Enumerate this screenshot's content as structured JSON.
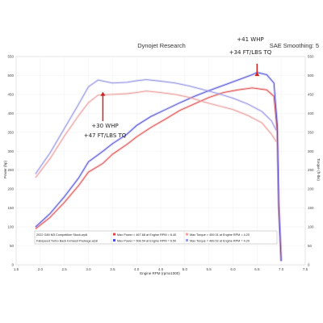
{
  "header": {
    "title": "Dynojet Research",
    "smoothing": "SAE Smoothing: 5"
  },
  "annotations": [
    {
      "line1": "+41 WHP",
      "line2": "+34 FT/LBS TQ",
      "arrow_at": [
        6.5,
        507
      ]
    },
    {
      "line1": "+30 WHP",
      "line2": "+47 FT/LBS TQ",
      "arrow_at": [
        3.3,
        455
      ]
    }
  ],
  "legend": {
    "rows": [
      {
        "file": "2022 G80 M3 Competition Stock.wp8",
        "power_text": "Max Power = 467.68 at Engine RPM = 6.40",
        "torque_text": "Max Torque = 459.31 at Engine RPM = 4.20",
        "power_color": "#e04848",
        "torque_color": "#f0a0a0"
      },
      {
        "file": "Fabspeed Turbo Back Exhaust Package.wp8",
        "power_text": "Max Power = 508.54 at Engine RPM = 6.50",
        "torque_text": "Max Torque = 489.52 at Engine RPM = 4.20",
        "power_color": "#4a4ad8",
        "torque_color": "#9a9ae8"
      }
    ]
  },
  "chart_data": {
    "type": "line",
    "xlabel": "Engine RPM (rpmx1000)",
    "ylabel_left": "Power (hp)",
    "ylabel_right": "Torque (ft-lbs)",
    "xlim": [
      1.5,
      7.5
    ],
    "ylim": [
      0,
      550
    ],
    "xticks": [
      "1.5",
      "2.0",
      "2.5",
      "3.0",
      "3.5",
      "4.0",
      "4.5",
      "5.0",
      "5.5",
      "6.0",
      "6.5",
      "7.0",
      "7.5"
    ],
    "yticks": [
      "0",
      "50",
      "100",
      "150",
      "200",
      "250",
      "300",
      "350",
      "400",
      "450",
      "500",
      "550"
    ],
    "series": [
      {
        "name": "2022 G80 M3 Competition Stock.wp8",
        "kind": "power",
        "color": "#e04848",
        "x": [
          1.9,
          2.2,
          2.5,
          2.8,
          3.0,
          3.3,
          3.5,
          3.8,
          4.0,
          4.3,
          4.6,
          4.9,
          5.2,
          5.5,
          5.8,
          6.1,
          6.4,
          6.7,
          6.85,
          6.92,
          6.95,
          7.0
        ],
        "y": [
          95,
          125,
          165,
          210,
          245,
          268,
          292,
          318,
          338,
          363,
          385,
          408,
          425,
          442,
          455,
          462,
          467,
          462,
          445,
          350,
          150,
          10
        ]
      },
      {
        "name": "Fabspeed Turbo Back Exhaust Package.wp8",
        "kind": "power",
        "color": "#4a4ad8",
        "x": [
          1.9,
          2.2,
          2.5,
          2.8,
          3.0,
          3.3,
          3.5,
          3.8,
          4.0,
          4.3,
          4.6,
          4.9,
          5.2,
          5.5,
          5.8,
          6.1,
          6.4,
          6.5,
          6.7,
          6.85,
          6.92,
          6.95,
          7.0
        ],
        "y": [
          100,
          135,
          180,
          230,
          272,
          300,
          320,
          345,
          368,
          392,
          410,
          428,
          445,
          460,
          474,
          488,
          502,
          508,
          502,
          480,
          370,
          160,
          10
        ]
      },
      {
        "name": "2022 G80 M3 Competition Stock.wp8",
        "kind": "torque",
        "color": "#f0a0a0",
        "x": [
          1.9,
          2.2,
          2.5,
          2.8,
          3.0,
          3.2,
          3.5,
          3.8,
          4.0,
          4.2,
          4.5,
          4.8,
          5.1,
          5.4,
          5.7,
          6.0,
          6.3,
          6.6,
          6.8,
          6.9
        ],
        "y": [
          230,
          280,
          340,
          395,
          428,
          448,
          450,
          452,
          455,
          459,
          455,
          450,
          442,
          430,
          420,
          410,
          395,
          375,
          345,
          325
        ]
      },
      {
        "name": "Fabspeed Turbo Back Exhaust Package.wp8",
        "kind": "torque",
        "color": "#9a9ae8",
        "x": [
          1.9,
          2.2,
          2.5,
          2.8,
          3.0,
          3.2,
          3.5,
          3.8,
          4.0,
          4.2,
          4.5,
          4.8,
          5.1,
          5.4,
          5.7,
          6.0,
          6.3,
          6.6,
          6.8,
          6.9
        ],
        "y": [
          240,
          295,
          360,
          425,
          470,
          488,
          480,
          482,
          486,
          489,
          485,
          480,
          472,
          462,
          452,
          440,
          425,
          405,
          380,
          355
        ]
      }
    ]
  }
}
